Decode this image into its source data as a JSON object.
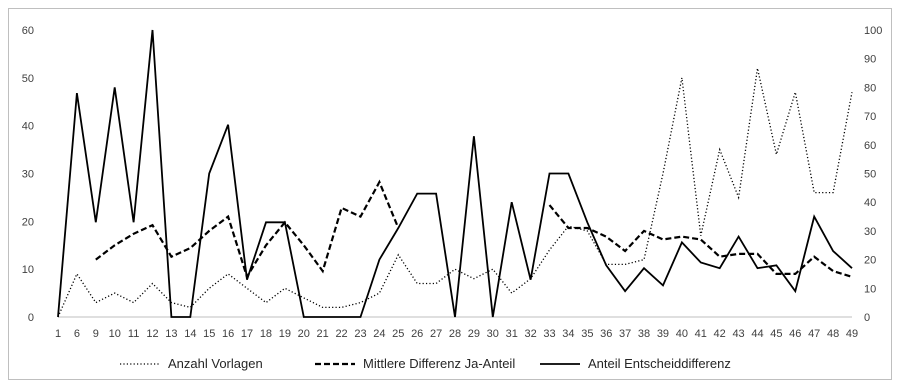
{
  "chart_data": {
    "type": "line",
    "categories": [
      "1",
      "6",
      "9",
      "10",
      "11",
      "12",
      "13",
      "14",
      "15",
      "16",
      "17",
      "18",
      "19",
      "20",
      "21",
      "22",
      "23",
      "24",
      "25",
      "26",
      "27",
      "28",
      "29",
      "30",
      "31",
      "32",
      "33",
      "34",
      "35",
      "36",
      "37",
      "38",
      "39",
      "40",
      "41",
      "42",
      "43",
      "44",
      "45",
      "46",
      "47",
      "48",
      "49"
    ],
    "y_left": {
      "ylim": [
        0,
        60
      ],
      "ticks": [
        0,
        10,
        20,
        30,
        40,
        50,
        60
      ]
    },
    "y_right": {
      "ylim": [
        0,
        100
      ],
      "ticks": [
        0,
        10,
        20,
        30,
        40,
        50,
        60,
        70,
        80,
        90,
        100
      ]
    },
    "grid": false,
    "legend_position": "bottom",
    "series": [
      {
        "name": "Anzahl Vorlagen",
        "style": "dotted",
        "axis": "left",
        "color": "#000000",
        "values": [
          0,
          9,
          3,
          5,
          3,
          7,
          3,
          2,
          6,
          9,
          6,
          3,
          6,
          4,
          2,
          2,
          3,
          5,
          13,
          7,
          7,
          10,
          8,
          10,
          5,
          8,
          14,
          19,
          18,
          11,
          11,
          12,
          30,
          50,
          17,
          35,
          25,
          52,
          34,
          47,
          26,
          26,
          47
        ]
      },
      {
        "name": "Mittlere Differenz Ja-Anteil",
        "style": "dashed",
        "axis": "right",
        "color": "#000000",
        "values": [
          null,
          null,
          20,
          25,
          29,
          32,
          21,
          24,
          30,
          35,
          14,
          25,
          33,
          25,
          16,
          38,
          35,
          47,
          31,
          null,
          null,
          null,
          null,
          null,
          null,
          null,
          39,
          31,
          31,
          28,
          23,
          30,
          27,
          28,
          27,
          21,
          22,
          22,
          15,
          15,
          21,
          16,
          14
        ]
      },
      {
        "name": "Anteil Entscheiddifferenz",
        "style": "solid",
        "axis": "right",
        "color": "#000000",
        "values": [
          0,
          78,
          33,
          80,
          33,
          100,
          0,
          0,
          50,
          67,
          13,
          33,
          33,
          0,
          0,
          0,
          0,
          20,
          31,
          43,
          43,
          0,
          63,
          0,
          40,
          13,
          50,
          50,
          33,
          18,
          9,
          17,
          11,
          26,
          19,
          17,
          28,
          17,
          18,
          9,
          35,
          23,
          17
        ]
      }
    ]
  }
}
